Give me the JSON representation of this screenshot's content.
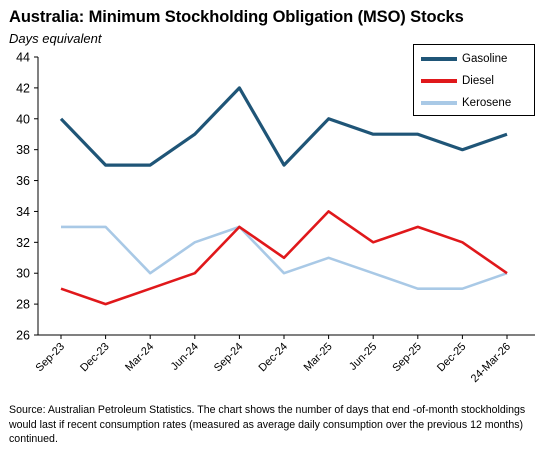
{
  "title": "Australia: Minimum Stockholding Obligation (MSO) Stocks",
  "subtitle": "Days equivalent",
  "source": "Source: Australian Petroleum Statistics. The chart shows the number of days that end -of-month stockholdings would last if recent consumption rates (measured as average daily consumption over the previous 12 months) continued.",
  "colors": {
    "gasoline": "#1f5577",
    "diesel": "#e0181b",
    "kerosene": "#a9c9e6"
  },
  "chart_data": {
    "type": "line",
    "title": "Australia: Minimum Stockholding Obligation (MSO) Stocks",
    "ylabel": "Days equivalent",
    "xlabel": "",
    "categories": [
      "Sep-23",
      "Dec-23",
      "Mar-24",
      "Jun-24",
      "Sep-24",
      "Dec-24",
      "Mar-25",
      "Jun-25",
      "Sep-25",
      "Dec-25",
      "24-Mar-26"
    ],
    "series": [
      {
        "name": "Gasoline",
        "color": "#1f5577",
        "values": [
          40,
          37,
          37,
          39,
          42,
          37,
          40,
          39,
          39,
          38,
          39
        ]
      },
      {
        "name": "Diesel",
        "color": "#e0181b",
        "values": [
          29,
          28,
          29,
          30,
          33,
          31,
          34,
          32,
          33,
          32,
          30
        ]
      },
      {
        "name": "Kerosene",
        "color": "#a9c9e6",
        "values": [
          33,
          33,
          30,
          32,
          33,
          30,
          31,
          30,
          29,
          29,
          30
        ]
      }
    ],
    "ylim": [
      26,
      44
    ],
    "yticks": [
      26,
      28,
      30,
      32,
      34,
      36,
      38,
      40,
      42,
      44
    ],
    "grid": false,
    "legend_position": "top-right"
  }
}
